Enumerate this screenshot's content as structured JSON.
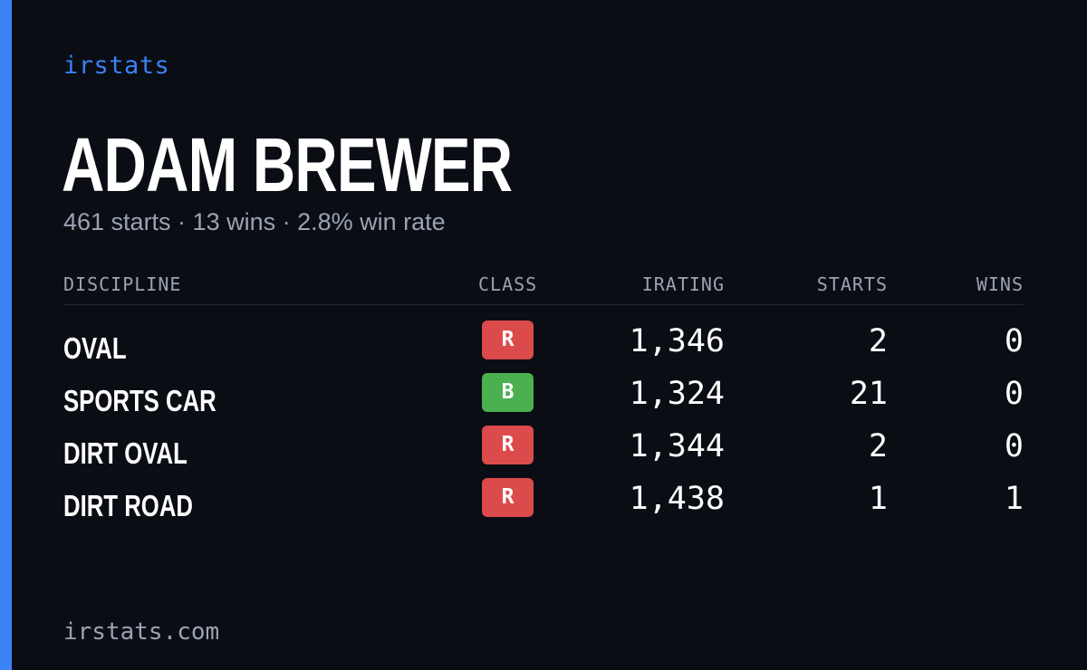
{
  "brand": "irstats",
  "driver": {
    "name": "ADAM BREWER",
    "summary": "461 starts · 13 wins · 2.8% win rate"
  },
  "table": {
    "headers": {
      "discipline": "DISCIPLINE",
      "class": "CLASS",
      "irating": "IRATING",
      "starts": "STARTS",
      "wins": "WINS"
    },
    "rows": [
      {
        "discipline": "OVAL",
        "class": "R",
        "class_color": "#dc4b4b",
        "irating": "1,346",
        "starts": "2",
        "wins": "0"
      },
      {
        "discipline": "SPORTS CAR",
        "class": "B",
        "class_color": "#4caf50",
        "irating": "1,324",
        "starts": "21",
        "wins": "0"
      },
      {
        "discipline": "DIRT OVAL",
        "class": "R",
        "class_color": "#dc4b4b",
        "irating": "1,344",
        "starts": "2",
        "wins": "0"
      },
      {
        "discipline": "DIRT ROAD",
        "class": "R",
        "class_color": "#dc4b4b",
        "irating": "1,438",
        "starts": "1",
        "wins": "1"
      }
    ]
  },
  "footer": "irstats.com",
  "colors": {
    "accent": "#3b82f6",
    "background": "#0a0d14"
  }
}
